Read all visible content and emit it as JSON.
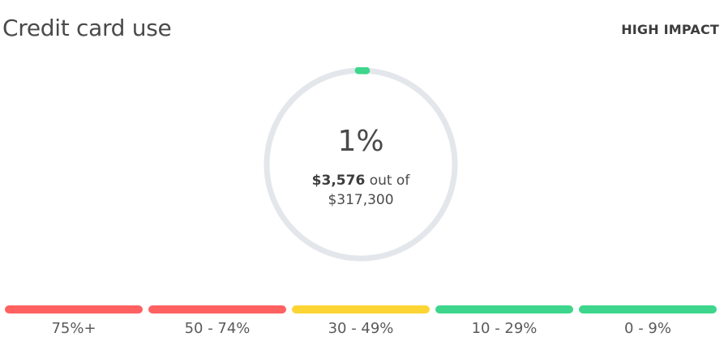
{
  "header": {
    "title": "Credit card use",
    "impact": "HIGH IMPACT"
  },
  "gauge": {
    "percent_text": "1%",
    "percent_value": 1,
    "amount": "$3,576",
    "out_of_text": "out of",
    "limit": "$317,300",
    "track_color": "#e3e7eb",
    "progress_color": "#3dd68c"
  },
  "ranges": [
    {
      "label": "75%+",
      "color": "#ff6161"
    },
    {
      "label": "50 - 74%",
      "color": "#ff6161"
    },
    {
      "label": "30 - 49%",
      "color": "#fcd535"
    },
    {
      "label": "10 - 29%",
      "color": "#3dd68c"
    },
    {
      "label": "0 - 9%",
      "color": "#3dd68c"
    }
  ]
}
